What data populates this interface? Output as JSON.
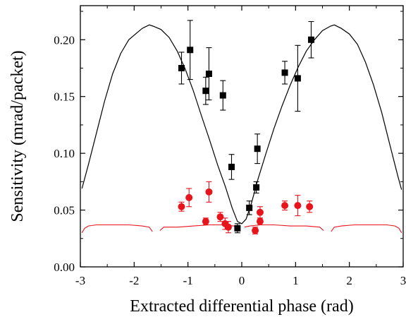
{
  "chart_data": {
    "type": "scatter",
    "title": "",
    "xlabel": "Extracted differential phase (rad)",
    "ylabel": "Sensitivity (mrad/packet)",
    "xlim": [
      -3,
      3
    ],
    "ylim": [
      0,
      0.23
    ],
    "x_ticks": [
      -3,
      -2,
      -1,
      0,
      1,
      2,
      3
    ],
    "x_tick_labels": [
      "-3",
      "-2",
      "-1",
      "0",
      "1",
      "2",
      "3"
    ],
    "y_ticks": [
      0.0,
      0.05,
      0.1,
      0.15,
      0.2
    ],
    "y_tick_labels": [
      "0.00",
      "0.05",
      "0.10",
      "0.15",
      "0.20"
    ],
    "grid": false,
    "legend": "none",
    "series": [
      {
        "kind": "scatter-errorbar",
        "marker": "square",
        "color": "#000000",
        "points": [
          {
            "x": -1.12,
            "y": 0.175,
            "err": 0.014
          },
          {
            "x": -0.96,
            "y": 0.191,
            "err": 0.026
          },
          {
            "x": -0.67,
            "y": 0.155,
            "err": 0.012
          },
          {
            "x": -0.61,
            "y": 0.17,
            "err": 0.023
          },
          {
            "x": -0.35,
            "y": 0.151,
            "err": 0.013
          },
          {
            "x": -0.19,
            "y": 0.088,
            "err": 0.011
          },
          {
            "x": -0.08,
            "y": 0.034,
            "err": 0.004
          },
          {
            "x": 0.14,
            "y": 0.052,
            "err": 0.006
          },
          {
            "x": 0.27,
            "y": 0.07,
            "err": 0.005
          },
          {
            "x": 0.29,
            "y": 0.104,
            "err": 0.013
          },
          {
            "x": 0.8,
            "y": 0.171,
            "err": 0.01
          },
          {
            "x": 1.04,
            "y": 0.166,
            "err": 0.029
          },
          {
            "x": 1.29,
            "y": 0.2,
            "err": 0.016
          }
        ]
      },
      {
        "kind": "scatter-errorbar",
        "marker": "circle",
        "color": "#e8141c",
        "points": [
          {
            "x": -1.12,
            "y": 0.053,
            "err": 0.004
          },
          {
            "x": -0.98,
            "y": 0.061,
            "err": 0.008
          },
          {
            "x": -0.67,
            "y": 0.04,
            "err": 0.003
          },
          {
            "x": -0.61,
            "y": 0.066,
            "err": 0.009
          },
          {
            "x": -0.4,
            "y": 0.044,
            "err": 0.004
          },
          {
            "x": -0.31,
            "y": 0.038,
            "err": 0.005
          },
          {
            "x": -0.25,
            "y": 0.035,
            "err": 0.005
          },
          {
            "x": 0.25,
            "y": 0.032,
            "err": 0.003
          },
          {
            "x": 0.34,
            "y": 0.048,
            "err": 0.005
          },
          {
            "x": 0.34,
            "y": 0.04,
            "err": 0.003
          },
          {
            "x": 0.8,
            "y": 0.054,
            "err": 0.004
          },
          {
            "x": 1.04,
            "y": 0.054,
            "err": 0.009
          },
          {
            "x": 1.26,
            "y": 0.053,
            "err": 0.005
          }
        ]
      },
      {
        "kind": "line",
        "color": "#000000",
        "points": [
          [
            -2.97,
            0.069
          ],
          [
            -2.85,
            0.09
          ],
          [
            -2.7,
            0.118
          ],
          [
            -2.55,
            0.146
          ],
          [
            -2.4,
            0.17
          ],
          [
            -2.25,
            0.188
          ],
          [
            -2.1,
            0.2
          ],
          [
            -1.95,
            0.206
          ],
          [
            -1.85,
            0.21
          ],
          [
            -1.72,
            0.213
          ],
          [
            -1.65,
            0.212
          ],
          [
            -1.5,
            0.209
          ],
          [
            -1.35,
            0.202
          ],
          [
            -1.2,
            0.19
          ],
          [
            -1.05,
            0.174
          ],
          [
            -0.9,
            0.155
          ],
          [
            -0.75,
            0.133
          ],
          [
            -0.6,
            0.112
          ],
          [
            -0.45,
            0.09
          ],
          [
            -0.3,
            0.07
          ],
          [
            -0.18,
            0.052
          ],
          [
            -0.08,
            0.04
          ],
          [
            0.0,
            0.038
          ],
          [
            0.08,
            0.042
          ],
          [
            0.18,
            0.056
          ],
          [
            0.3,
            0.077
          ],
          [
            0.45,
            0.1
          ],
          [
            0.6,
            0.122
          ],
          [
            0.75,
            0.142
          ],
          [
            0.9,
            0.16
          ],
          [
            1.05,
            0.176
          ],
          [
            1.2,
            0.19
          ],
          [
            1.35,
            0.2
          ],
          [
            1.5,
            0.208
          ],
          [
            1.65,
            0.212
          ],
          [
            1.72,
            0.213
          ],
          [
            1.85,
            0.21
          ],
          [
            2.0,
            0.205
          ],
          [
            2.15,
            0.196
          ],
          [
            2.3,
            0.18
          ],
          [
            2.45,
            0.16
          ],
          [
            2.6,
            0.136
          ],
          [
            2.75,
            0.108
          ],
          [
            2.9,
            0.08
          ],
          [
            2.97,
            0.068
          ]
        ]
      },
      {
        "kind": "line-segments",
        "color": "#e8141c",
        "segments": [
          [
            [
              -2.97,
              0.03
            ],
            [
              -2.92,
              0.034
            ],
            [
              -2.85,
              0.036
            ],
            [
              -2.7,
              0.037
            ],
            [
              -2.4,
              0.037
            ],
            [
              -2.1,
              0.037
            ],
            [
              -1.85,
              0.036
            ],
            [
              -1.72,
              0.035
            ],
            [
              -1.66,
              0.031
            ]
          ],
          [
            [
              -1.52,
              0.032
            ],
            [
              -1.45,
              0.035
            ],
            [
              -1.2,
              0.035
            ],
            [
              -0.9,
              0.036
            ],
            [
              -0.6,
              0.037
            ],
            [
              -0.35,
              0.037
            ],
            [
              -0.15,
              0.036
            ],
            [
              -0.05,
              0.035
            ]
          ],
          [
            [
              0.05,
              0.035
            ],
            [
              0.15,
              0.036
            ],
            [
              0.35,
              0.037
            ],
            [
              0.6,
              0.037
            ],
            [
              0.9,
              0.036
            ],
            [
              1.2,
              0.036
            ],
            [
              1.45,
              0.035
            ],
            [
              1.52,
              0.032
            ]
          ],
          [
            [
              1.66,
              0.031
            ],
            [
              1.72,
              0.035
            ],
            [
              1.85,
              0.036
            ],
            [
              2.1,
              0.037
            ],
            [
              2.4,
              0.037
            ],
            [
              2.7,
              0.037
            ],
            [
              2.85,
              0.036
            ],
            [
              2.92,
              0.034
            ],
            [
              2.97,
              0.03
            ]
          ]
        ]
      }
    ]
  }
}
